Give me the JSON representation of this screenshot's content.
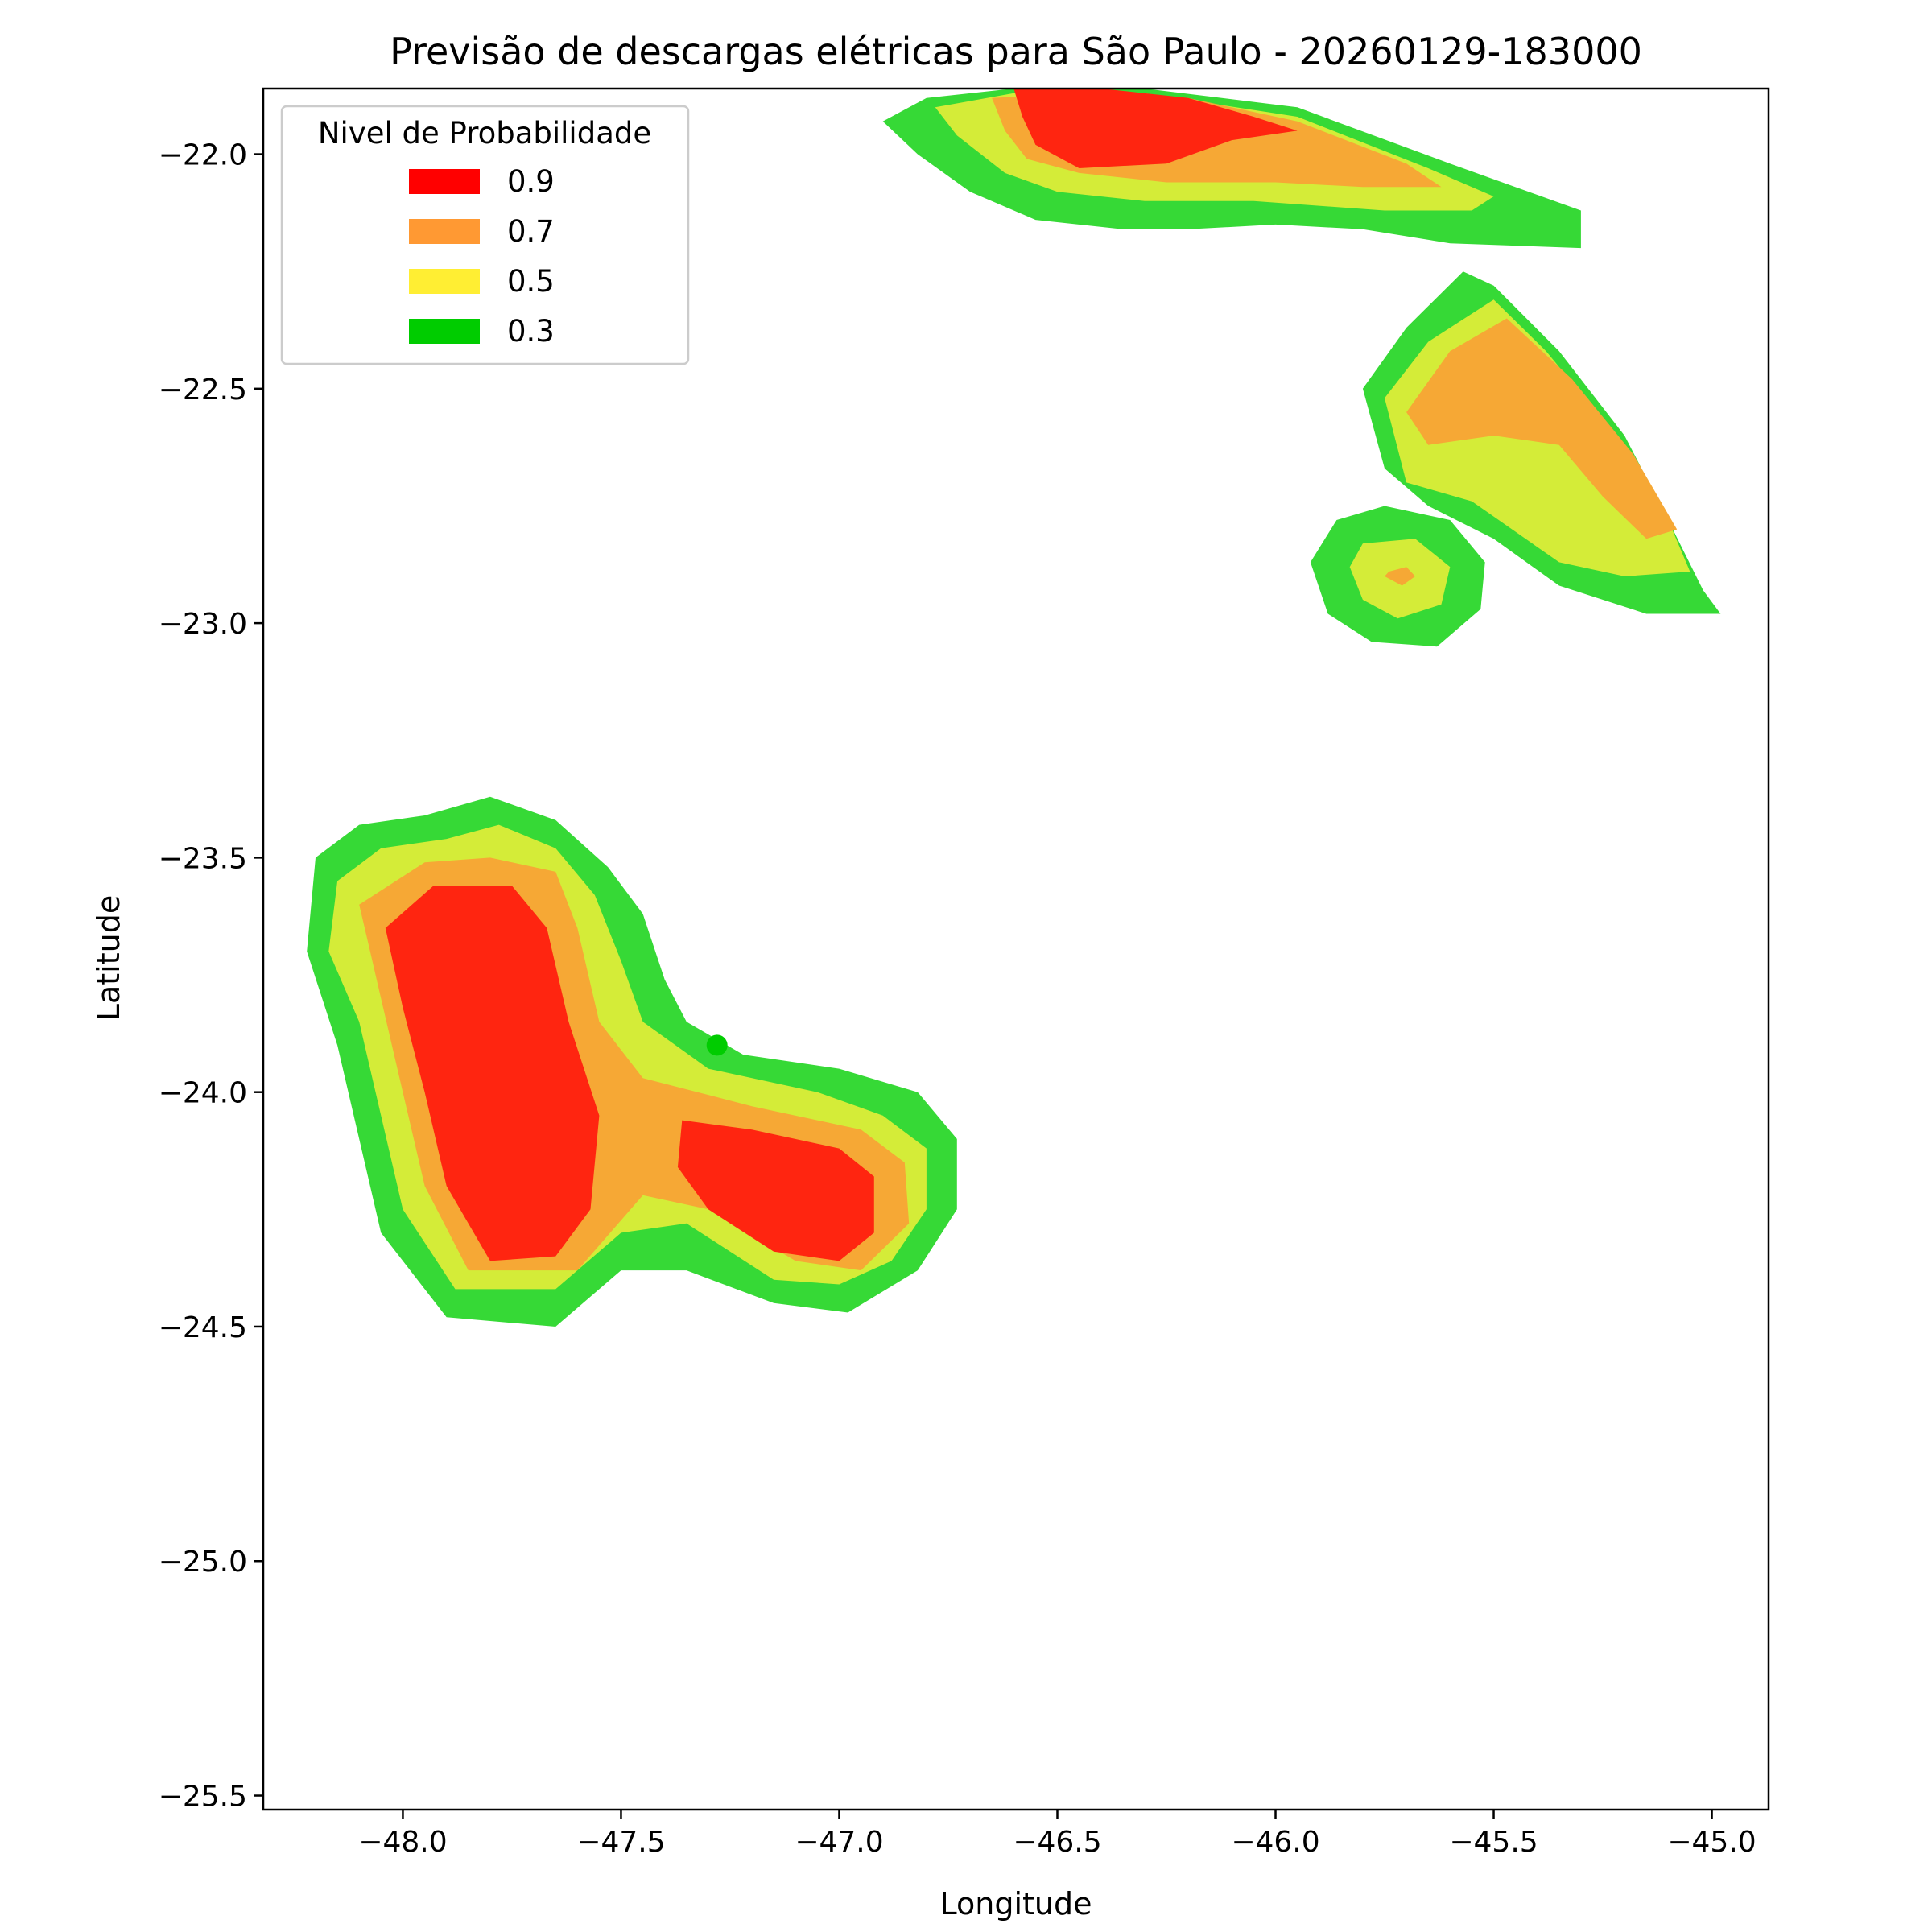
{
  "chart_data": {
    "type": "contour",
    "title": "Previsão de descargas elétricas para São Paulo - 20260129-183000",
    "xlabel": "Longitude",
    "ylabel": "Latitude",
    "xlim": [
      -48.32,
      -44.87
    ],
    "ylim": [
      -25.53,
      -21.86
    ],
    "x_ticks": [
      -48.0,
      -47.5,
      -47.0,
      -46.5,
      -46.0,
      -45.5,
      -45.0
    ],
    "x_tick_labels": [
      "−48.0",
      "−47.5",
      "−47.0",
      "−46.5",
      "−46.0",
      "−45.5",
      "−45.0"
    ],
    "y_ticks": [
      -22.0,
      -22.5,
      -23.0,
      -23.5,
      -24.0,
      -24.5,
      -25.0,
      -25.5
    ],
    "y_tick_labels": [
      "−22.0",
      "−22.5",
      "−23.0",
      "−23.5",
      "−24.0",
      "−24.5",
      "−25.0",
      "−25.5"
    ],
    "grid": false,
    "legend": {
      "title": "Nivel de Probabilidade",
      "position": "upper-left",
      "entries": [
        {
          "label": "0.9",
          "color": "#ff0000"
        },
        {
          "label": "0.7",
          "color": "#ff9933"
        },
        {
          "label": "0.5",
          "color": "#ffee33"
        },
        {
          "label": "0.3",
          "color": "#00cc00"
        }
      ]
    },
    "levels": [
      {
        "level": 0.3,
        "color": "#36d936"
      },
      {
        "level": 0.5,
        "color": "#d4ec38"
      },
      {
        "level": 0.7,
        "color": "#f6a835"
      },
      {
        "level": 0.9,
        "color": "#ff2510"
      }
    ],
    "regions": [
      {
        "name": "north-cell",
        "contours": [
          {
            "level": 0.3,
            "polygon": [
              [
                -46.9,
                -21.93
              ],
              [
                -46.8,
                -21.88
              ],
              [
                -46.6,
                -21.86
              ],
              [
                -46.3,
                -21.86
              ],
              [
                -45.95,
                -21.9
              ],
              [
                -45.6,
                -22.02
              ],
              [
                -45.3,
                -22.12
              ],
              [
                -45.3,
                -22.2
              ],
              [
                -45.6,
                -22.19
              ],
              [
                -45.8,
                -22.16
              ],
              [
                -46.0,
                -22.15
              ],
              [
                -46.2,
                -22.16
              ],
              [
                -46.35,
                -22.16
              ],
              [
                -46.55,
                -22.14
              ],
              [
                -46.7,
                -22.08
              ],
              [
                -46.82,
                -22.0
              ]
            ]
          },
          {
            "level": 0.5,
            "polygon": [
              [
                -46.78,
                -21.9
              ],
              [
                -46.6,
                -21.87
              ],
              [
                -46.3,
                -21.87
              ],
              [
                -45.95,
                -21.92
              ],
              [
                -45.65,
                -22.03
              ],
              [
                -45.5,
                -22.09
              ],
              [
                -45.55,
                -22.12
              ],
              [
                -45.75,
                -22.12
              ],
              [
                -46.05,
                -22.1
              ],
              [
                -46.3,
                -22.1
              ],
              [
                -46.5,
                -22.08
              ],
              [
                -46.62,
                -22.04
              ],
              [
                -46.73,
                -21.96
              ]
            ]
          },
          {
            "level": 0.7,
            "polygon": [
              [
                -46.65,
                -21.88
              ],
              [
                -46.45,
                -21.87
              ],
              [
                -46.2,
                -21.88
              ],
              [
                -45.95,
                -21.93
              ],
              [
                -45.7,
                -22.02
              ],
              [
                -45.62,
                -22.07
              ],
              [
                -45.8,
                -22.07
              ],
              [
                -46.0,
                -22.06
              ],
              [
                -46.25,
                -22.06
              ],
              [
                -46.45,
                -22.04
              ],
              [
                -46.57,
                -22.01
              ],
              [
                -46.62,
                -21.95
              ]
            ]
          },
          {
            "level": 0.9,
            "polygon": [
              [
                -46.6,
                -21.86
              ],
              [
                -46.4,
                -21.86
              ],
              [
                -46.2,
                -21.88
              ],
              [
                -46.05,
                -21.92
              ],
              [
                -45.95,
                -21.95
              ],
              [
                -46.1,
                -21.97
              ],
              [
                -46.25,
                -22.02
              ],
              [
                -46.45,
                -22.03
              ],
              [
                -46.55,
                -21.98
              ],
              [
                -46.58,
                -21.92
              ]
            ]
          }
        ]
      },
      {
        "name": "east-cell",
        "contours": [
          {
            "level": 0.3,
            "polygon": [
              [
                -45.57,
                -22.25
              ],
              [
                -45.5,
                -22.28
              ],
              [
                -45.35,
                -22.42
              ],
              [
                -45.2,
                -22.6
              ],
              [
                -45.1,
                -22.78
              ],
              [
                -45.02,
                -22.93
              ],
              [
                -44.98,
                -22.98
              ],
              [
                -45.15,
                -22.98
              ],
              [
                -45.35,
                -22.92
              ],
              [
                -45.5,
                -22.82
              ],
              [
                -45.65,
                -22.75
              ],
              [
                -45.75,
                -22.67
              ],
              [
                -45.8,
                -22.5
              ],
              [
                -45.7,
                -22.37
              ]
            ]
          },
          {
            "level": 0.5,
            "polygon": [
              [
                -45.5,
                -22.31
              ],
              [
                -45.38,
                -22.42
              ],
              [
                -45.22,
                -22.6
              ],
              [
                -45.1,
                -22.78
              ],
              [
                -45.05,
                -22.89
              ],
              [
                -45.2,
                -22.9
              ],
              [
                -45.35,
                -22.87
              ],
              [
                -45.55,
                -22.74
              ],
              [
                -45.7,
                -22.7
              ],
              [
                -45.75,
                -22.52
              ],
              [
                -45.65,
                -22.4
              ]
            ]
          },
          {
            "level": 0.7,
            "polygon": [
              [
                -45.47,
                -22.35
              ],
              [
                -45.32,
                -22.48
              ],
              [
                -45.18,
                -22.64
              ],
              [
                -45.08,
                -22.8
              ],
              [
                -45.15,
                -22.82
              ],
              [
                -45.25,
                -22.73
              ],
              [
                -45.35,
                -22.62
              ],
              [
                -45.5,
                -22.6
              ],
              [
                -45.65,
                -22.62
              ],
              [
                -45.7,
                -22.55
              ],
              [
                -45.6,
                -22.42
              ]
            ]
          }
        ]
      },
      {
        "name": "small-cell",
        "contours": [
          {
            "level": 0.3,
            "polygon": [
              [
                -45.86,
                -22.78
              ],
              [
                -45.75,
                -22.75
              ],
              [
                -45.6,
                -22.78
              ],
              [
                -45.52,
                -22.87
              ],
              [
                -45.53,
                -22.97
              ],
              [
                -45.63,
                -23.05
              ],
              [
                -45.78,
                -23.04
              ],
              [
                -45.88,
                -22.98
              ],
              [
                -45.92,
                -22.87
              ]
            ]
          },
          {
            "level": 0.5,
            "polygon": [
              [
                -45.8,
                -22.83
              ],
              [
                -45.68,
                -22.82
              ],
              [
                -45.6,
                -22.88
              ],
              [
                -45.62,
                -22.96
              ],
              [
                -45.72,
                -22.99
              ],
              [
                -45.8,
                -22.95
              ],
              [
                -45.83,
                -22.88
              ]
            ]
          },
          {
            "level": 0.7,
            "polygon": [
              [
                -45.74,
                -22.89
              ],
              [
                -45.7,
                -22.88
              ],
              [
                -45.68,
                -22.9
              ],
              [
                -45.71,
                -22.92
              ],
              [
                -45.75,
                -22.9
              ]
            ]
          }
        ]
      },
      {
        "name": "southwest-cell",
        "contours": [
          {
            "level": 0.3,
            "polygon": [
              [
                -48.2,
                -23.5
              ],
              [
                -48.1,
                -23.43
              ],
              [
                -47.95,
                -23.41
              ],
              [
                -47.8,
                -23.37
              ],
              [
                -47.65,
                -23.42
              ],
              [
                -47.53,
                -23.52
              ],
              [
                -47.45,
                -23.62
              ],
              [
                -47.4,
                -23.76
              ],
              [
                -47.35,
                -23.85
              ],
              [
                -47.22,
                -23.92
              ],
              [
                -47.0,
                -23.95
              ],
              [
                -46.82,
                -24.0
              ],
              [
                -46.73,
                -24.1
              ],
              [
                -46.73,
                -24.25
              ],
              [
                -46.82,
                -24.38
              ],
              [
                -46.98,
                -24.47
              ],
              [
                -47.15,
                -24.45
              ],
              [
                -47.35,
                -24.38
              ],
              [
                -47.5,
                -24.38
              ],
              [
                -47.65,
                -24.5
              ],
              [
                -47.9,
                -24.48
              ],
              [
                -48.05,
                -24.3
              ],
              [
                -48.1,
                -24.1
              ],
              [
                -48.15,
                -23.9
              ],
              [
                -48.22,
                -23.7
              ]
            ]
          },
          {
            "level": 0.5,
            "polygon": [
              [
                -48.15,
                -23.55
              ],
              [
                -48.05,
                -23.48
              ],
              [
                -47.9,
                -23.46
              ],
              [
                -47.78,
                -23.43
              ],
              [
                -47.65,
                -23.48
              ],
              [
                -47.56,
                -23.58
              ],
              [
                -47.5,
                -23.72
              ],
              [
                -47.45,
                -23.85
              ],
              [
                -47.3,
                -23.95
              ],
              [
                -47.05,
                -24.0
              ],
              [
                -46.9,
                -24.05
              ],
              [
                -46.8,
                -24.12
              ],
              [
                -46.8,
                -24.25
              ],
              [
                -46.88,
                -24.36
              ],
              [
                -47.0,
                -24.41
              ],
              [
                -47.15,
                -24.4
              ],
              [
                -47.35,
                -24.28
              ],
              [
                -47.5,
                -24.3
              ],
              [
                -47.65,
                -24.42
              ],
              [
                -47.88,
                -24.42
              ],
              [
                -48.0,
                -24.25
              ],
              [
                -48.05,
                -24.05
              ],
              [
                -48.1,
                -23.85
              ],
              [
                -48.17,
                -23.7
              ]
            ]
          },
          {
            "level": 0.7,
            "polygon": [
              [
                -48.1,
                -23.6
              ],
              [
                -47.95,
                -23.51
              ],
              [
                -47.8,
                -23.5
              ],
              [
                -47.65,
                -23.53
              ],
              [
                -47.6,
                -23.65
              ],
              [
                -47.55,
                -23.85
              ],
              [
                -47.45,
                -23.97
              ],
              [
                -47.2,
                -24.03
              ],
              [
                -46.95,
                -24.08
              ],
              [
                -46.85,
                -24.15
              ],
              [
                -46.84,
                -24.28
              ],
              [
                -46.95,
                -24.38
              ],
              [
                -47.1,
                -24.36
              ],
              [
                -47.3,
                -24.25
              ],
              [
                -47.45,
                -24.22
              ],
              [
                -47.6,
                -24.38
              ],
              [
                -47.85,
                -24.38
              ],
              [
                -47.95,
                -24.2
              ],
              [
                -48.0,
                -24.0
              ],
              [
                -48.05,
                -23.8
              ],
              [
                -48.08,
                -23.68
              ]
            ]
          },
          {
            "level": 0.9,
            "polygon": [
              [
                -48.04,
                -23.65
              ],
              [
                -47.93,
                -23.56
              ],
              [
                -47.75,
                -23.56
              ],
              [
                -47.67,
                -23.65
              ],
              [
                -47.62,
                -23.85
              ],
              [
                -47.55,
                -24.05
              ],
              [
                -47.57,
                -24.25
              ],
              [
                -47.65,
                -24.35
              ],
              [
                -47.8,
                -24.36
              ],
              [
                -47.9,
                -24.2
              ],
              [
                -47.95,
                -24.0
              ],
              [
                -48.0,
                -23.82
              ]
            ]
          },
          {
            "level": 0.9,
            "polygon": [
              [
                -47.36,
                -24.06
              ],
              [
                -47.2,
                -24.08
              ],
              [
                -47.0,
                -24.12
              ],
              [
                -46.92,
                -24.18
              ],
              [
                -46.92,
                -24.3
              ],
              [
                -47.0,
                -24.36
              ],
              [
                -47.15,
                -24.34
              ],
              [
                -47.3,
                -24.25
              ],
              [
                -47.37,
                -24.16
              ]
            ]
          }
        ]
      }
    ],
    "points": [
      {
        "x": -47.28,
        "y": -23.9,
        "color": "#00cc00"
      }
    ]
  }
}
